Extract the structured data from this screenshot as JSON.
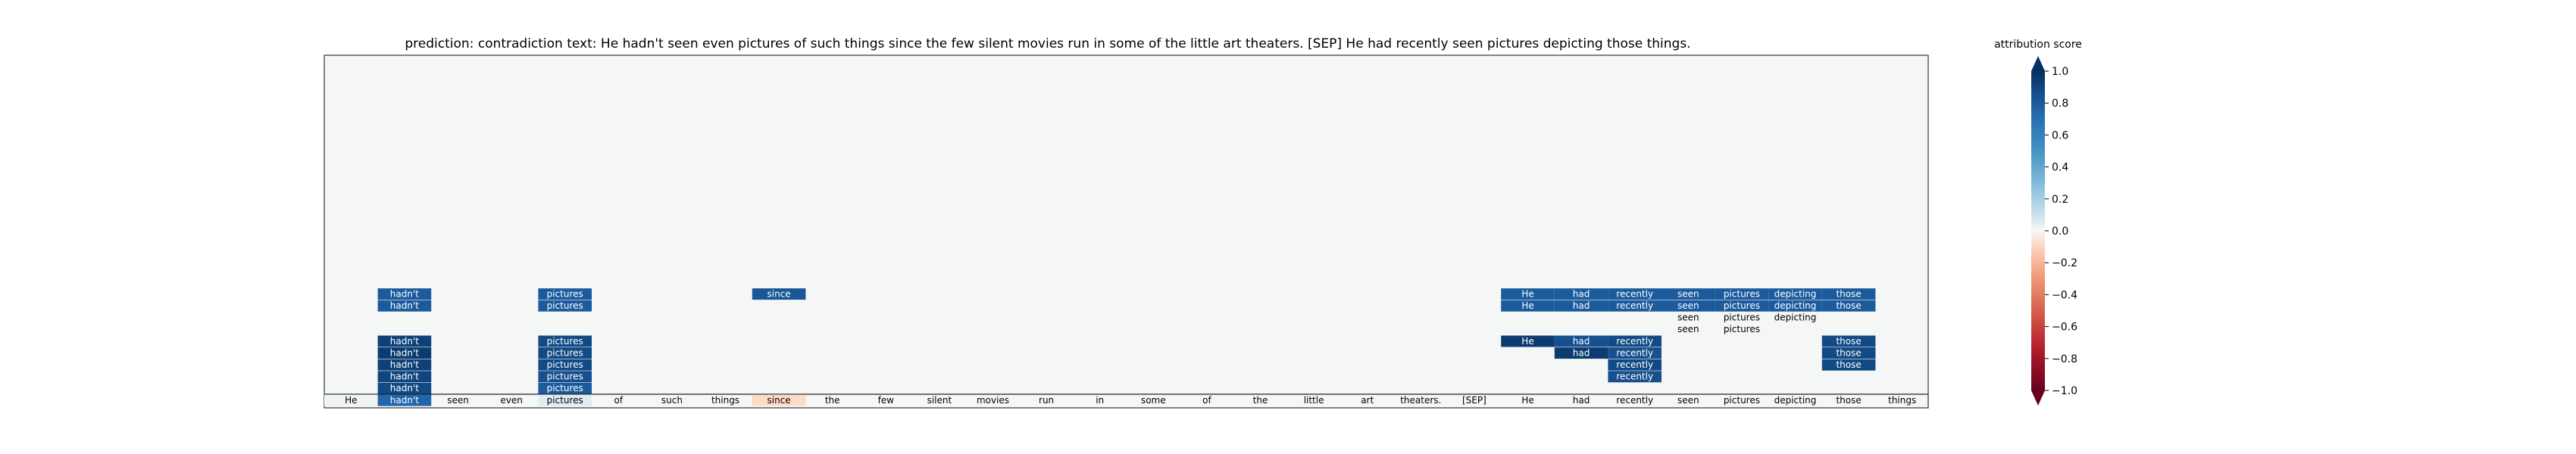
{
  "chart_data": {
    "type": "heatmap",
    "title": "prediction:  contradiction     text:  He hadn't seen even pictures of such things since the few silent movies run in some of the little art theaters. [SEP] He had recently seen pictures depicting those things.",
    "prediction": "contradiction",
    "tokens": [
      "He",
      "hadn't",
      "seen",
      "even",
      "pictures",
      "of",
      "such",
      "things",
      "since",
      "the",
      "few",
      "silent",
      "movies",
      "run",
      "in",
      "some",
      "of",
      "the",
      "little",
      "art",
      "theaters.",
      "[SEP]",
      "He",
      "had",
      "recently",
      "seen",
      "pictures",
      "depicting",
      "those",
      "things"
    ],
    "bottom_row_values": [
      0.02,
      0.75,
      0.0,
      0.0,
      0.05,
      0.0,
      0.0,
      0.0,
      -0.08,
      0.0,
      0.0,
      0.0,
      0.0,
      0.0,
      0.0,
      0.0,
      0.0,
      0.0,
      0.0,
      0.0,
      0.0,
      0.0,
      0.0,
      0.0,
      0.0,
      0.0,
      0.0,
      0.0,
      0.0,
      0.0
    ],
    "rows": [
      {
        "level": 9,
        "cells": [
          {
            "i": 1,
            "v": 0.8
          },
          {
            "i": 4,
            "v": 0.8
          },
          {
            "i": 8,
            "v": 0.82
          },
          {
            "i": 22,
            "v": 0.8
          },
          {
            "i": 23,
            "v": 0.8
          },
          {
            "i": 24,
            "v": 0.8
          },
          {
            "i": 25,
            "v": 0.8
          },
          {
            "i": 26,
            "v": 0.8
          },
          {
            "i": 27,
            "v": 0.8
          },
          {
            "i": 28,
            "v": 0.8
          }
        ]
      },
      {
        "level": 8,
        "cells": [
          {
            "i": 1,
            "v": 0.8
          },
          {
            "i": 4,
            "v": 0.8
          },
          {
            "i": 22,
            "v": 0.8
          },
          {
            "i": 23,
            "v": 0.8
          },
          {
            "i": 24,
            "v": 0.8
          },
          {
            "i": 25,
            "v": 0.8
          },
          {
            "i": 26,
            "v": 0.8
          },
          {
            "i": 27,
            "v": 0.8
          },
          {
            "i": 28,
            "v": 0.8
          }
        ]
      },
      {
        "level": 7,
        "cells": [
          {
            "i": 25,
            "v": 0.0
          },
          {
            "i": 26,
            "v": 0.0
          },
          {
            "i": 27,
            "v": 0.0
          }
        ]
      },
      {
        "level": 6,
        "cells": [
          {
            "i": 25,
            "v": 0.0
          },
          {
            "i": 26,
            "v": 0.0
          }
        ]
      },
      {
        "level": 5,
        "cells": [
          {
            "i": 1,
            "v": 0.92
          },
          {
            "i": 4,
            "v": 0.88
          },
          {
            "i": 22,
            "v": 0.95
          },
          {
            "i": 23,
            "v": 0.85
          },
          {
            "i": 24,
            "v": 0.88
          },
          {
            "i": 28,
            "v": 0.88
          }
        ]
      },
      {
        "level": 4,
        "cells": [
          {
            "i": 1,
            "v": 0.95
          },
          {
            "i": 4,
            "v": 0.88
          },
          {
            "i": 23,
            "v": 0.95
          },
          {
            "i": 24,
            "v": 0.85
          },
          {
            "i": 28,
            "v": 0.88
          }
        ]
      },
      {
        "level": 3,
        "cells": [
          {
            "i": 1,
            "v": 0.92
          },
          {
            "i": 4,
            "v": 0.88
          },
          {
            "i": 24,
            "v": 0.88
          },
          {
            "i": 28,
            "v": 0.88
          }
        ]
      },
      {
        "level": 2,
        "cells": [
          {
            "i": 1,
            "v": 0.9
          },
          {
            "i": 4,
            "v": 0.85
          },
          {
            "i": 24,
            "v": 0.85
          }
        ]
      },
      {
        "level": 1,
        "cells": [
          {
            "i": 1,
            "v": 0.88
          },
          {
            "i": 4,
            "v": 0.8
          }
        ]
      }
    ],
    "colorbar": {
      "label": "attribution score",
      "ticks": [
        "1.0",
        "0.8",
        "0.6",
        "0.4",
        "0.2",
        "0.0",
        "−0.2",
        "−0.4",
        "−0.6",
        "−0.8",
        "−1.0"
      ],
      "range": [
        -1.0,
        1.0
      ]
    },
    "cmap": "RdBu",
    "colors": {
      "background": "#f5f7f6"
    }
  }
}
